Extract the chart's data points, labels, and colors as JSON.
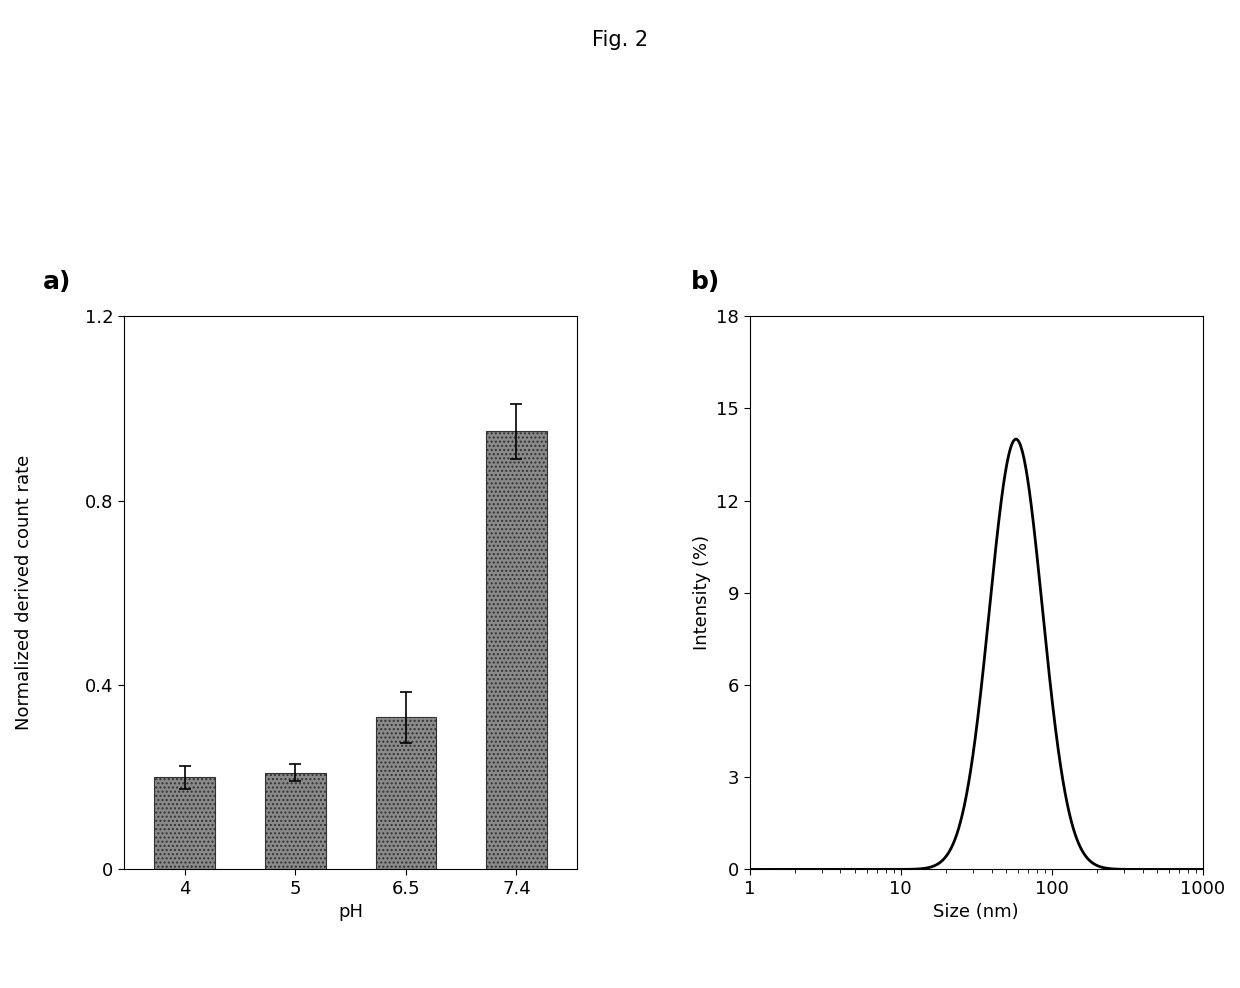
{
  "fig_title": "Fig. 2",
  "panel_a": {
    "categories": [
      "4",
      "5",
      "6.5",
      "7.4"
    ],
    "values": [
      0.2,
      0.21,
      0.33,
      0.95
    ],
    "errors": [
      0.025,
      0.018,
      0.055,
      0.06
    ],
    "xlabel": "pH",
    "ylabel": "Normalized derived count rate",
    "ylim": [
      0,
      1.2
    ],
    "yticks": [
      0,
      0.4,
      0.8,
      1.2
    ],
    "bar_color": "#8a8a8a",
    "bar_edgecolor": "#333333",
    "label": "a)"
  },
  "panel_b": {
    "peak_nm": 58,
    "peak_intensity": 14.0,
    "sigma_log": 0.175,
    "xlabel": "Size (nm)",
    "ylabel": "Intensity (%)",
    "ylim": [
      0,
      18
    ],
    "yticks": [
      0,
      3,
      6,
      9,
      12,
      15,
      18
    ],
    "xticks": [
      1,
      10,
      100,
      1000
    ],
    "xtick_labels": [
      "1",
      "10",
      "100",
      "1000"
    ],
    "line_color": "#000000",
    "line_width": 2.0,
    "label": "b)"
  },
  "background_color": "#ffffff",
  "title_fontsize": 15,
  "label_fontsize": 18,
  "tick_fontsize": 13,
  "axis_label_fontsize": 13
}
